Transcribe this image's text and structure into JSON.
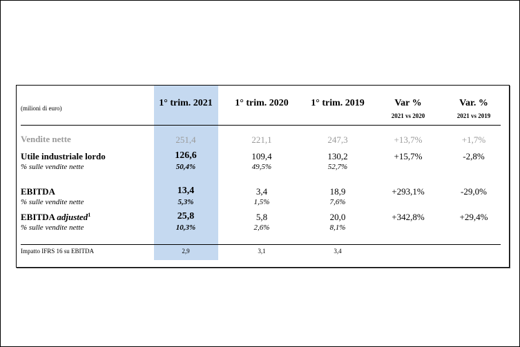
{
  "header": {
    "unit_label": "(milioni di euro)",
    "columns": [
      {
        "label": "1° trim. 2021",
        "sub": ""
      },
      {
        "label": "1° trim. 2020",
        "sub": ""
      },
      {
        "label": "1° trim. 2019",
        "sub": ""
      },
      {
        "label": "Var %",
        "sub": "2021 vs 2020"
      },
      {
        "label": "Var. %",
        "sub": "2021 vs 2019"
      }
    ]
  },
  "rows": {
    "vendite": {
      "label": "Vendite nette",
      "values": [
        "251,4",
        "221,1",
        "247,3",
        "+13,7%",
        "+1,7%"
      ]
    },
    "utile": {
      "label": "Utile industriale lordo",
      "values": [
        "126,6",
        "109,4",
        "130,2",
        "+15,7%",
        "-2,8%"
      ]
    },
    "utile_pct": {
      "label": "% sulle vendite nette",
      "values": [
        "50,4%",
        "49,5%",
        "52,7%"
      ]
    },
    "ebitda": {
      "label": "EBITDA",
      "values": [
        "13,4",
        "3,4",
        "18,9",
        "+293,1%",
        "-29,0%"
      ]
    },
    "ebitda_pct": {
      "label": "% sulle vendite nette",
      "values": [
        "5,3%",
        "1,5%",
        "7,6%"
      ]
    },
    "ebitda_adj": {
      "label": "EBITDA",
      "label_italic": "adjusted",
      "footnote": "1",
      "values": [
        "25,8",
        "5,8",
        "20,0",
        "+342,8%",
        "+29,4%"
      ]
    },
    "ebitda_adj_pct": {
      "label": "% sulle vendite nette",
      "values": [
        "10,3%",
        "2,6%",
        "8,1%"
      ]
    },
    "ifrs": {
      "label": "Impatto IFRS 16 su EBITDA",
      "values": [
        "2,9",
        "3,1",
        "3,4"
      ]
    }
  },
  "colors": {
    "highlight": "#c5d9f0",
    "muted": "#9a9a9a"
  }
}
